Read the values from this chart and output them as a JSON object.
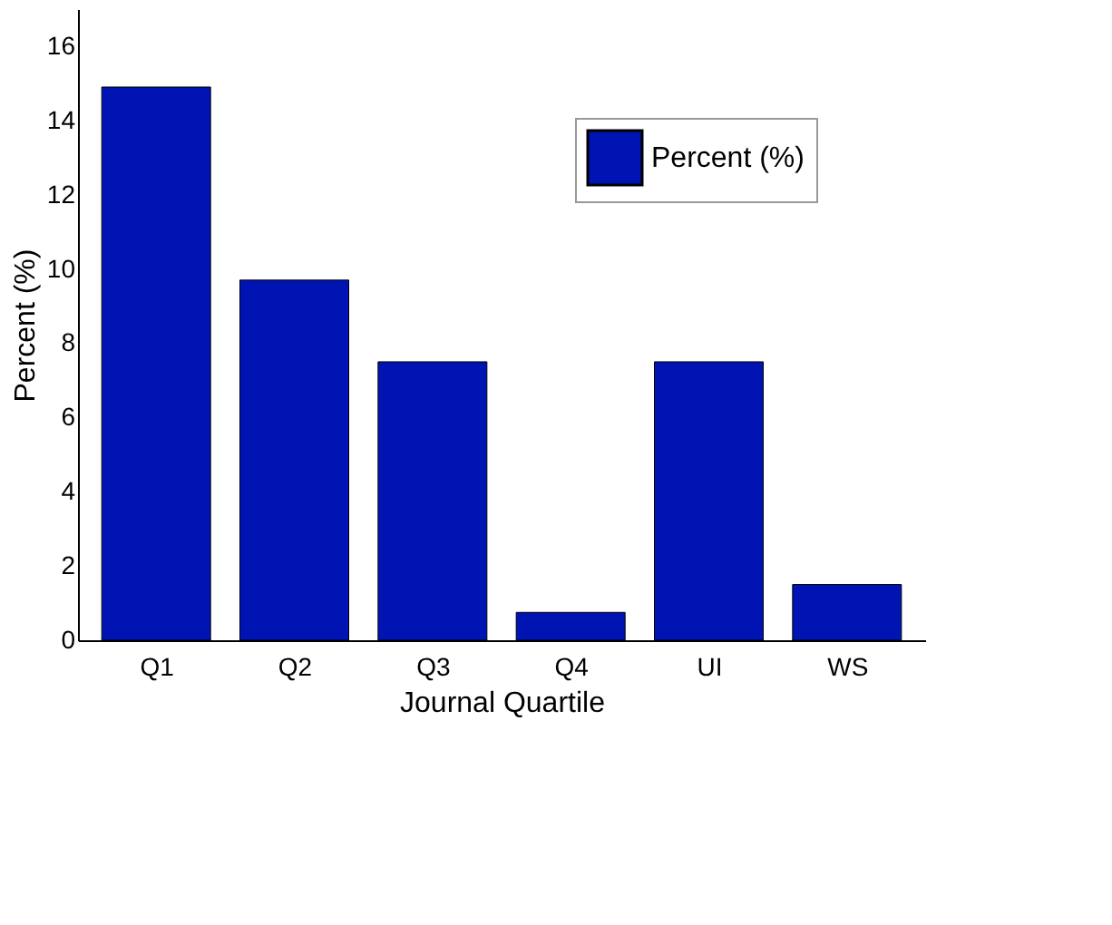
{
  "chart_data": {
    "type": "bar",
    "xlabel": "Journal Quartile",
    "ylabel": "Percent (%)",
    "categories": [
      "Q1",
      "Q2",
      "Q3",
      "Q4",
      "UI",
      "WS"
    ],
    "series": [
      {
        "name": "Percent (%)",
        "color": "#0014b4",
        "values": [
          14.9,
          9.7,
          7.5,
          0.75,
          7.5,
          1.5
        ]
      }
    ],
    "ylim": [
      0,
      17
    ],
    "yticks": [
      0,
      2,
      4,
      6,
      8,
      10,
      12,
      14,
      16
    ],
    "grid": false,
    "legend": "top right"
  }
}
